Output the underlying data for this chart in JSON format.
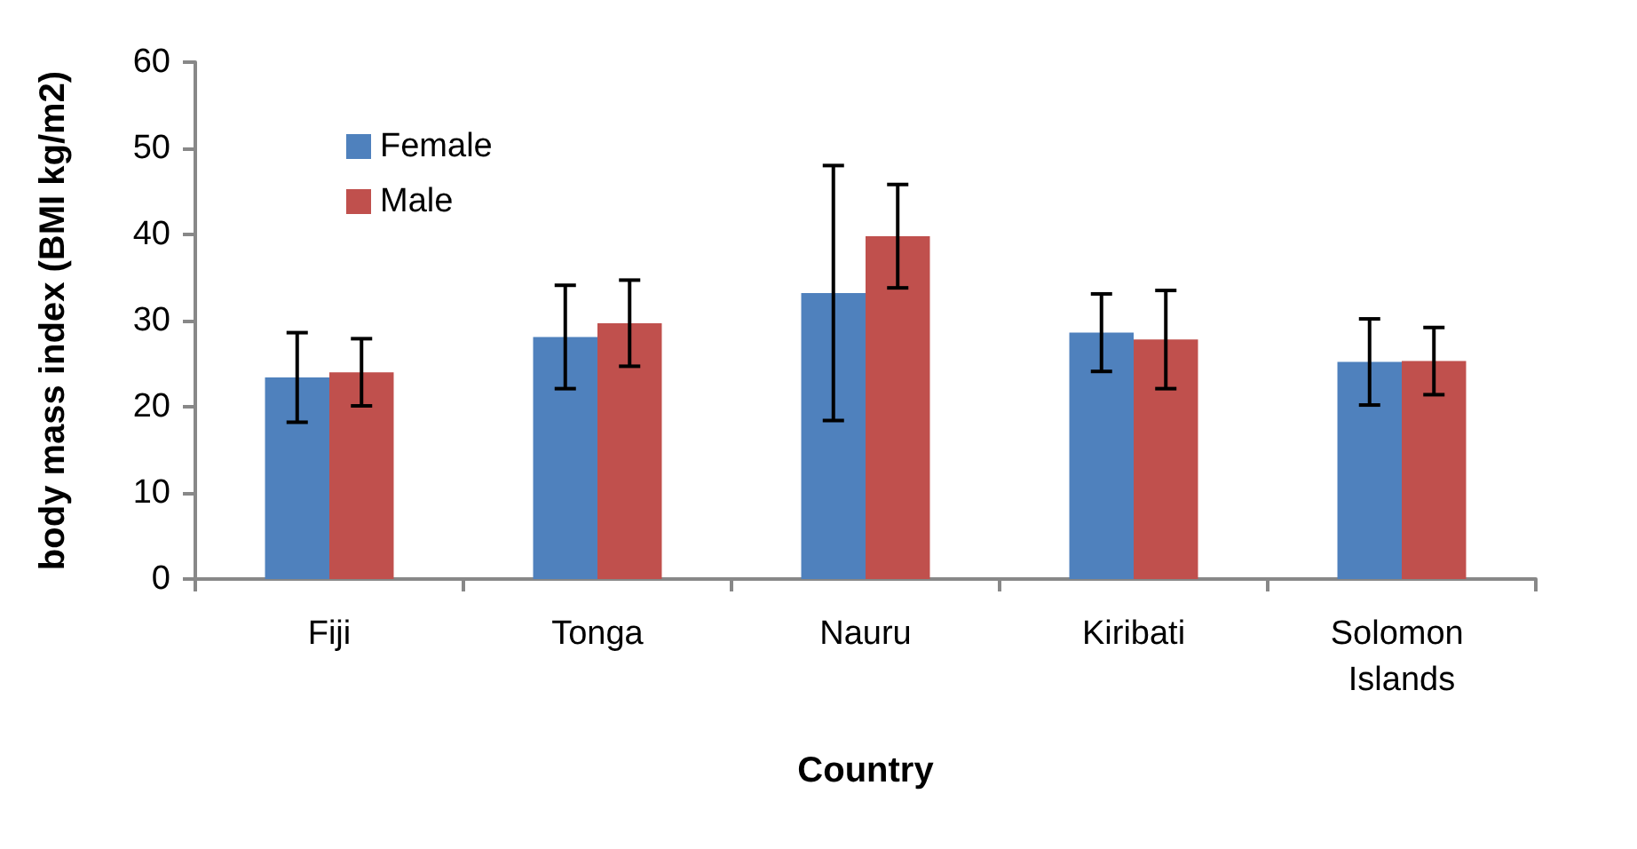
{
  "chart_data": {
    "type": "bar",
    "xlabel": "Country",
    "ylabel": "body mass index (BMI kg/m2)",
    "categories": [
      "Fiji",
      "Tonga",
      "Nauru",
      "Kiribati",
      "Solomon Islands"
    ],
    "series": [
      {
        "name": "Female",
        "color": "#4f81bd",
        "values": [
          23.4,
          28.1,
          33.2,
          28.6,
          25.2
        ],
        "errors": [
          5.2,
          6.0,
          14.8,
          4.5,
          5.0
        ]
      },
      {
        "name": "Male",
        "color": "#c0504d",
        "values": [
          24.0,
          29.7,
          39.8,
          27.8,
          25.3
        ],
        "errors": [
          3.9,
          5.0,
          6.0,
          5.7,
          3.9
        ]
      }
    ],
    "ylim": [
      0,
      60
    ],
    "yticks": [
      0,
      10,
      20,
      30,
      40,
      50,
      60
    ],
    "grid": false,
    "legend": "top left"
  }
}
